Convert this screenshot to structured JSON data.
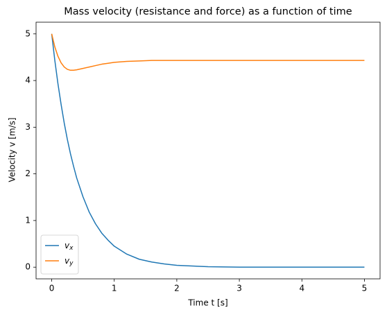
{
  "chart_data": {
    "type": "line",
    "title": "Mass velocity (resistance and force) as a function of time",
    "x_label": "Time t [s]",
    "y_label": "Velocity v [m/s]",
    "x": [
      0,
      0.05,
      0.1,
      0.15,
      0.2,
      0.25,
      0.3,
      0.35,
      0.4,
      0.5,
      0.6,
      0.7,
      0.8,
      0.9,
      1.0,
      1.2,
      1.4,
      1.6,
      1.8,
      2.0,
      2.5,
      3,
      3.5,
      4,
      4.5,
      5
    ],
    "series": [
      {
        "name": "vx",
        "color": "#1f77b4",
        "values": [
          5,
          4.43,
          3.93,
          3.49,
          3.09,
          2.74,
          2.43,
          2.16,
          1.91,
          1.51,
          1.18,
          0.93,
          0.73,
          0.58,
          0.45,
          0.28,
          0.17,
          0.11,
          0.07,
          0.04,
          0.01,
          0,
          0,
          0,
          0,
          0
        ]
      },
      {
        "name": "vy",
        "color": "#ff7f0e",
        "values": [
          5,
          4.72,
          4.52,
          4.38,
          4.29,
          4.24,
          4.22,
          4.22,
          4.23,
          4.26,
          4.29,
          4.32,
          4.35,
          4.37,
          4.39,
          4.41,
          4.42,
          4.43,
          4.43,
          4.43,
          4.43,
          4.43,
          4.43,
          4.43,
          4.43,
          4.43
        ]
      }
    ],
    "xlim": [
      -0.25,
      5.25
    ],
    "ylim": [
      -0.25,
      5.25
    ],
    "xticks": [
      0,
      1,
      2,
      3,
      4,
      5
    ],
    "yticks": [
      0,
      1,
      2,
      3,
      4,
      5
    ],
    "legend": "lower left"
  }
}
